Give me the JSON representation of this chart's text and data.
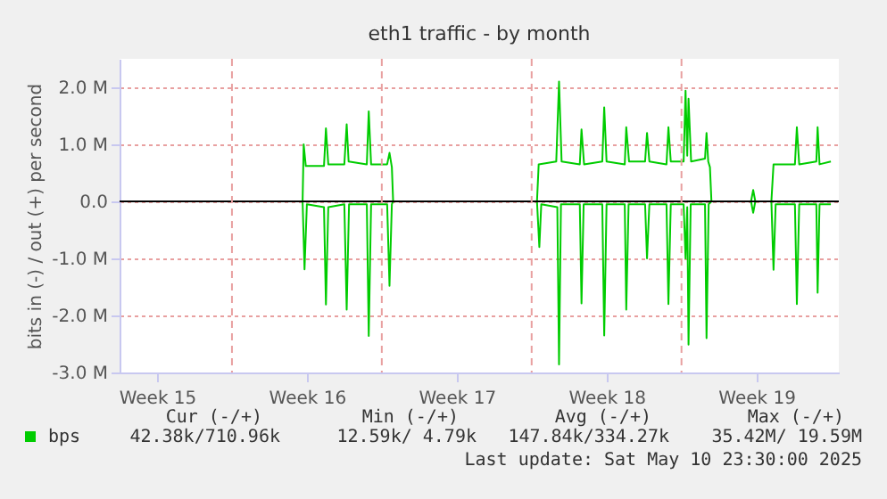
{
  "chart_data": {
    "type": "line",
    "title": "eth1 traffic - by month",
    "ylabel": "bits in (-) / out (+) per second",
    "xlim": [
      "2025-04-07T18:00",
      "2025-05-11T08:24"
    ],
    "ylim": [
      -3.0,
      2.5
    ],
    "xticks": [
      {
        "value": "2025-04-09T12:00",
        "label": "Week 15"
      },
      {
        "value": "2025-04-16T12:00",
        "label": "Week 16"
      },
      {
        "value": "2025-04-23T12:00",
        "label": "Week 17"
      },
      {
        "value": "2025-04-30T12:00",
        "label": "Week 18"
      },
      {
        "value": "2025-05-07T12:00",
        "label": "Week 19"
      }
    ],
    "yticks": [
      {
        "value": -3,
        "label": "-3.0 M"
      },
      {
        "value": -2,
        "label": "-2.0 M"
      },
      {
        "value": -1,
        "label": "-1.0 M"
      },
      {
        "value": 0,
        "label": "0.0"
      },
      {
        "value": 1,
        "label": "1.0 M"
      },
      {
        "value": 2,
        "label": "2.0 M"
      }
    ],
    "grid": "y",
    "legend": "bottom left",
    "line_style": "solid",
    "ref_lines": [
      {
        "axis": "y",
        "value": 0,
        "color": "#000000",
        "line_style": "solid"
      },
      {
        "axis": "x",
        "value": "2025-04-13",
        "color": "#e8a0a0",
        "line_style": "dashed"
      },
      {
        "axis": "x",
        "value": "2025-04-20",
        "color": "#e8a0a0",
        "line_style": "dashed"
      },
      {
        "axis": "x",
        "value": "2025-04-27",
        "color": "#e8a0a0",
        "line_style": "dashed"
      },
      {
        "axis": "x",
        "value": "2025-05-04",
        "color": "#e8a0a0",
        "line_style": "dashed"
      }
    ],
    "series": [
      {
        "name": "bps",
        "color": "#00cc00",
        "x": [
          "2025-04-07T18:00",
          "2025-04-16T07:12",
          "2025-04-16T08:24",
          "2025-04-16T10:48",
          "2025-04-17T07:12",
          "2025-04-17T09:22",
          "2025-04-17T12:00",
          "2025-04-18T06:00",
          "2025-04-18T08:38",
          "2025-04-18T10:48",
          "2025-04-19T07:12",
          "2025-04-19T09:22",
          "2025-04-19T12:00",
          "2025-04-20T06:00",
          "2025-04-20T08:38",
          "2025-04-20T11:17",
          "2025-04-20T12:43",
          "2025-04-27T06:00",
          "2025-04-27T07:55",
          "2025-04-28T03:36",
          "2025-04-28T06:43",
          "2025-04-28T09:36",
          "2025-04-29T06:00",
          "2025-04-29T07:55",
          "2025-04-29T10:48",
          "2025-04-30T07:12",
          "2025-04-30T09:22",
          "2025-04-30T12:00",
          "2025-05-01T08:24",
          "2025-05-01T10:05",
          "2025-05-01T13:12",
          "2025-05-02T07:12",
          "2025-05-02T09:22",
          "2025-05-02T12:00",
          "2025-05-03T07:12",
          "2025-05-03T09:22",
          "2025-05-03T12:00",
          "2025-05-04T02:24",
          "2025-05-04T04:34",
          "2025-05-04T06:29",
          "2025-05-04T07:55",
          "2025-05-04T10:48",
          "2025-05-05T02:24",
          "2025-05-05T04:05",
          "2025-05-05T06:00",
          "2025-05-05T07:55",
          "2025-05-05T09:36",
          "2025-05-07T06:00",
          "2025-05-07T08:24",
          "2025-05-07T10:48",
          "2025-05-08T04:48",
          "2025-05-08T07:12",
          "2025-05-09T07:12",
          "2025-05-09T09:22",
          "2025-05-09T12:00",
          "2025-05-10T07:12",
          "2025-05-10T08:38",
          "2025-05-10T10:48",
          "2025-05-10T23:30"
        ],
        "values": [
          0,
          0,
          1.0,
          0.62,
          0.62,
          1.28,
          0.65,
          0.65,
          1.35,
          0.7,
          0.65,
          1.58,
          0.65,
          0.65,
          0.85,
          0.6,
          0,
          0,
          0.65,
          0.7,
          2.1,
          0.7,
          0.65,
          1.26,
          0.65,
          0.7,
          1.65,
          0.7,
          0.65,
          1.3,
          0.7,
          0.7,
          1.2,
          0.7,
          0.65,
          1.3,
          0.7,
          0.7,
          1.94,
          0.8,
          1.8,
          0.7,
          0.75,
          1.2,
          0.7,
          0.6,
          0,
          0,
          0.2,
          0,
          0,
          0.65,
          0.65,
          1.3,
          0.65,
          0.7,
          1.3,
          0.65,
          0.7
        ]
      },
      {
        "color": "#00cc00",
        "x": [
          "2025-04-07T18:00",
          "2025-04-16T07:12",
          "2025-04-16T09:22",
          "2025-04-16T12:00",
          "2025-04-17T07:12",
          "2025-04-17T09:22",
          "2025-04-17T12:00",
          "2025-04-18T06:00",
          "2025-04-18T08:38",
          "2025-04-18T11:17",
          "2025-04-19T07:12",
          "2025-04-19T09:22",
          "2025-04-19T12:00",
          "2025-04-20T06:00",
          "2025-04-20T08:38",
          "2025-04-20T11:17",
          "2025-04-20T12:43",
          "2025-04-27T06:00",
          "2025-04-27T08:38",
          "2025-04-27T10:48",
          "2025-04-28T04:48",
          "2025-04-28T06:43",
          "2025-04-28T08:53",
          "2025-04-29T06:00",
          "2025-04-29T07:55",
          "2025-04-29T10:19",
          "2025-04-30T07:12",
          "2025-04-30T09:22",
          "2025-04-30T12:00",
          "2025-05-01T08:24",
          "2025-05-01T10:05",
          "2025-05-01T12:43",
          "2025-05-02T07:12",
          "2025-05-02T09:22",
          "2025-05-02T12:00",
          "2025-05-03T07:12",
          "2025-05-03T09:22",
          "2025-05-03T12:00",
          "2025-05-04T02:24",
          "2025-05-04T04:34",
          "2025-05-04T06:29",
          "2025-05-04T07:55",
          "2025-05-04T10:19",
          "2025-05-05T02:24",
          "2025-05-05T04:05",
          "2025-05-05T06:29",
          "2025-05-05T09:36",
          "2025-05-07T06:00",
          "2025-05-07T08:24",
          "2025-05-07T10:48",
          "2025-05-08T04:48",
          "2025-05-08T07:12",
          "2025-05-08T09:36",
          "2025-05-09T07:12",
          "2025-05-09T09:22",
          "2025-05-09T12:00",
          "2025-05-10T07:12",
          "2025-05-10T08:38",
          "2025-05-10T10:48",
          "2025-05-10T23:30"
        ],
        "values": [
          0,
          0,
          -1.19,
          -0.05,
          -0.1,
          -1.81,
          -0.1,
          -0.05,
          -1.9,
          -0.05,
          -0.05,
          -2.36,
          -0.05,
          -0.05,
          -1.48,
          -0.05,
          0,
          0,
          -0.8,
          -0.05,
          -0.1,
          -2.86,
          -0.05,
          -0.05,
          -1.79,
          -0.05,
          -0.05,
          -2.35,
          -0.05,
          -0.05,
          -1.9,
          -0.05,
          -0.05,
          -1.0,
          -0.05,
          -0.05,
          -1.8,
          -0.05,
          -0.05,
          -1.0,
          -0.1,
          -2.51,
          -0.05,
          -0.05,
          -2.4,
          -0.05,
          0,
          0,
          -0.2,
          0,
          0,
          -1.2,
          -0.05,
          -0.05,
          -1.8,
          -0.05,
          -0.05,
          -1.6,
          -0.05,
          -0.05
        ]
      }
    ],
    "annotations": [
      "Cur (-/+)",
      "Min (-/+)",
      "Avg (-/+)",
      "Max (-/+)",
      "42.38k/710.96k",
      "12.59k/   4.79k",
      "147.84k/334.27k",
      "35.42M/ 19.59M",
      "Last update: Sat May 10 23:30:00 2025"
    ]
  }
}
